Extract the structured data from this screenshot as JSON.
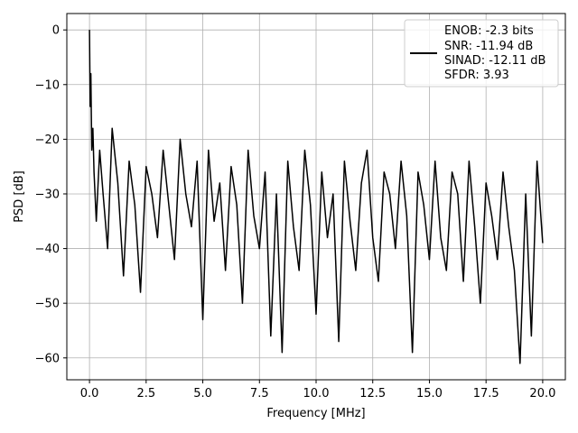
{
  "chart_data": {
    "type": "line",
    "title": "",
    "xlabel": "Frequency [MHz]",
    "ylabel": "PSD [dB]",
    "xlim": [
      -1.0,
      21.0
    ],
    "ylim": [
      -64.0,
      3.0
    ],
    "xticks": [
      0.0,
      2.5,
      5.0,
      7.5,
      10.0,
      12.5,
      15.0,
      17.5,
      20.0
    ],
    "xtick_labels": [
      "0.0",
      "2.5",
      "5.0",
      "7.5",
      "10.0",
      "12.5",
      "15.0",
      "17.5",
      "20.0"
    ],
    "yticks": [
      0,
      -10,
      -20,
      -30,
      -40,
      -50,
      -60
    ],
    "ytick_labels": [
      "0",
      "−10",
      "−20",
      "−30",
      "−40",
      "−50",
      "−60"
    ],
    "grid": true,
    "legend_position": "upper right",
    "series": [
      {
        "color": "#000000",
        "x": [
          0.0,
          0.03,
          0.06,
          0.1,
          0.15,
          0.2,
          0.3,
          0.45,
          0.6,
          0.8,
          1.0,
          1.25,
          1.5,
          1.75,
          2.0,
          2.25,
          2.5,
          2.75,
          3.0,
          3.25,
          3.5,
          3.75,
          4.0,
          4.25,
          4.5,
          4.75,
          5.0,
          5.25,
          5.5,
          5.75,
          6.0,
          6.25,
          6.5,
          6.75,
          7.0,
          7.25,
          7.5,
          7.75,
          8.0,
          8.25,
          8.5,
          8.75,
          9.0,
          9.25,
          9.5,
          9.75,
          10.0,
          10.25,
          10.5,
          10.75,
          11.0,
          11.25,
          11.5,
          11.75,
          12.0,
          12.25,
          12.5,
          12.75,
          13.0,
          13.25,
          13.5,
          13.75,
          14.0,
          14.25,
          14.5,
          14.75,
          15.0,
          15.25,
          15.5,
          15.75,
          16.0,
          16.25,
          16.5,
          16.75,
          17.0,
          17.25,
          17.5,
          17.75,
          18.0,
          18.25,
          18.5,
          18.75,
          19.0,
          19.25,
          19.5,
          19.75,
          20.0
        ],
        "y": [
          0.0,
          -14.0,
          -8.0,
          -22.0,
          -18.0,
          -26.0,
          -35.0,
          -22.0,
          -30.0,
          -40.0,
          -18.0,
          -28.0,
          -45.0,
          -24.0,
          -32.0,
          -48.0,
          -25.0,
          -30.0,
          -38.0,
          -22.0,
          -32.0,
          -42.0,
          -20.0,
          -30.0,
          -36.0,
          -24.0,
          -53.0,
          -22.0,
          -35.0,
          -28.0,
          -44.0,
          -25.0,
          -32.0,
          -50.0,
          -22.0,
          -34.0,
          -40.0,
          -26.0,
          -56.0,
          -30.0,
          -59.0,
          -24.0,
          -36.0,
          -44.0,
          -22.0,
          -32.0,
          -52.0,
          -26.0,
          -38.0,
          -30.0,
          -57.0,
          -24.0,
          -35.0,
          -44.0,
          -28.0,
          -22.0,
          -38.0,
          -46.0,
          -26.0,
          -30.0,
          -40.0,
          -24.0,
          -34.0,
          -59.0,
          -26.0,
          -32.0,
          -42.0,
          -24.0,
          -38.0,
          -44.0,
          -26.0,
          -30.0,
          -46.0,
          -24.0,
          -36.0,
          -50.0,
          -28.0,
          -34.0,
          -42.0,
          -26.0,
          -36.0,
          -44.0,
          -61.0,
          -30.0,
          -56.0,
          -24.0,
          -39.0
        ]
      }
    ]
  },
  "legend": {
    "lines": [
      "ENOB: -2.3 bits",
      "SNR: -11.94 dB",
      "SINAD: -12.11 dB",
      "SFDR: 3.93"
    ],
    "line_color": "#000000"
  },
  "colors": {
    "background": "#ffffff",
    "grid": "#b0b0b0",
    "axes": "#000000",
    "line": "#000000"
  }
}
